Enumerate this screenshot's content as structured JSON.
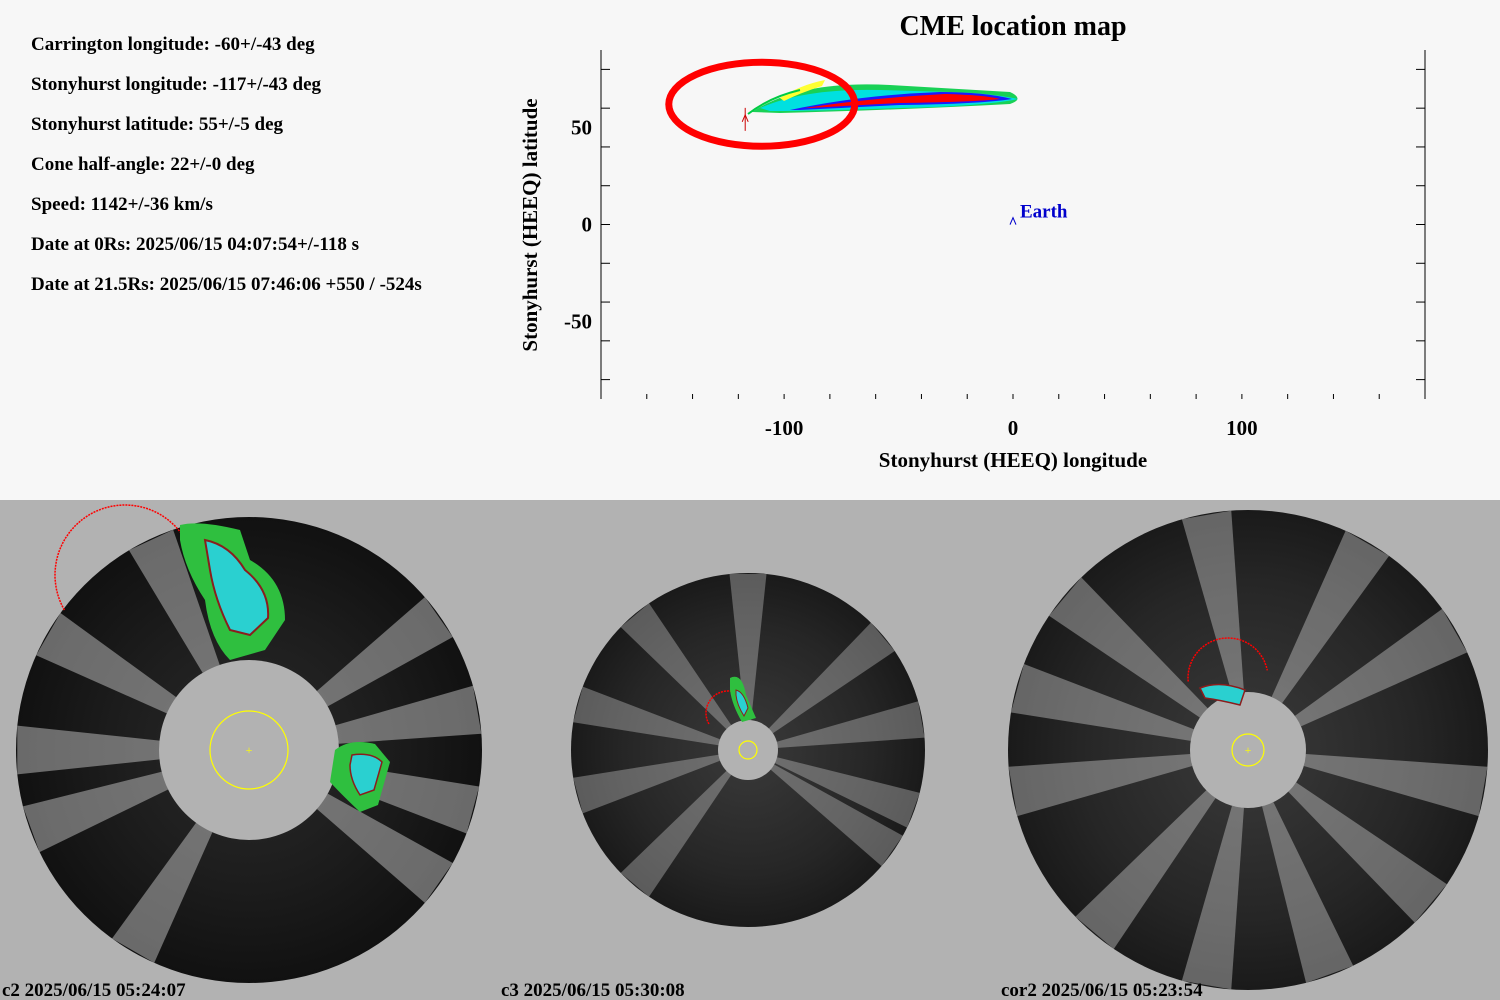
{
  "parameters": {
    "carrington_longitude": "Carrington longitude: -60+/-43 deg",
    "stonyhurst_longitude": "Stonyhurst longitude: -117+/-43 deg",
    "stonyhurst_latitude": "Stonyhurst latitude: 55+/-5 deg",
    "cone_half_angle": "Cone half-angle: 22+/-0 deg",
    "speed": "Speed: 1142+/-36 km/s",
    "date_0rs": "Date at 0Rs: 2025/06/15 04:07:54+/-118 s",
    "date_21_5rs": "Date at 21.5Rs: 2025/06/15 07:46:06 +550 / -524s"
  },
  "chart_data": {
    "type": "scatter",
    "title": "CME location map",
    "xlabel": "Stonyhurst (HEEQ) longitude",
    "ylabel": "Stonyhurst (HEEQ) latitude",
    "xlim": [
      -180,
      180
    ],
    "ylim": [
      -90,
      90
    ],
    "x_ticks": [
      -100,
      0,
      100
    ],
    "x_tick_labels": [
      "-100",
      "0",
      "100"
    ],
    "y_ticks": [
      50,
      0,
      -50
    ],
    "y_tick_labels": [
      "50",
      "0",
      "-50"
    ],
    "grid": false,
    "points": [
      {
        "name": "Earth",
        "lon": 0,
        "lat": 2,
        "label": "Earth",
        "marker": "^",
        "color": "#0000cc"
      },
      {
        "lon": -117,
        "lat": 55,
        "marker": "^",
        "color": "#cc0000"
      }
    ],
    "highlight_ellipse": {
      "center_lon": -115,
      "center_lat": 62,
      "color": "#ff0000"
    },
    "cme_band_colors": [
      "#ff0000",
      "#1a1aff",
      "#00e0e0",
      "#00cc44",
      "#ffff33"
    ]
  },
  "coronagraphs": [
    {
      "id": "c2",
      "caption": "c2 2025/06/15 05:24:07"
    },
    {
      "id": "c3",
      "caption": "c3 2025/06/15 05:30:08"
    },
    {
      "id": "cor2",
      "caption": "cor2 2025/06/15 05:23:54"
    }
  ],
  "colors": {
    "sun_outline": "#ffff00",
    "cme_fit": "#ff0000",
    "background_lower": "#b2b2b2",
    "background_upper": "#f7f7f7",
    "earth": "#0000cc"
  }
}
